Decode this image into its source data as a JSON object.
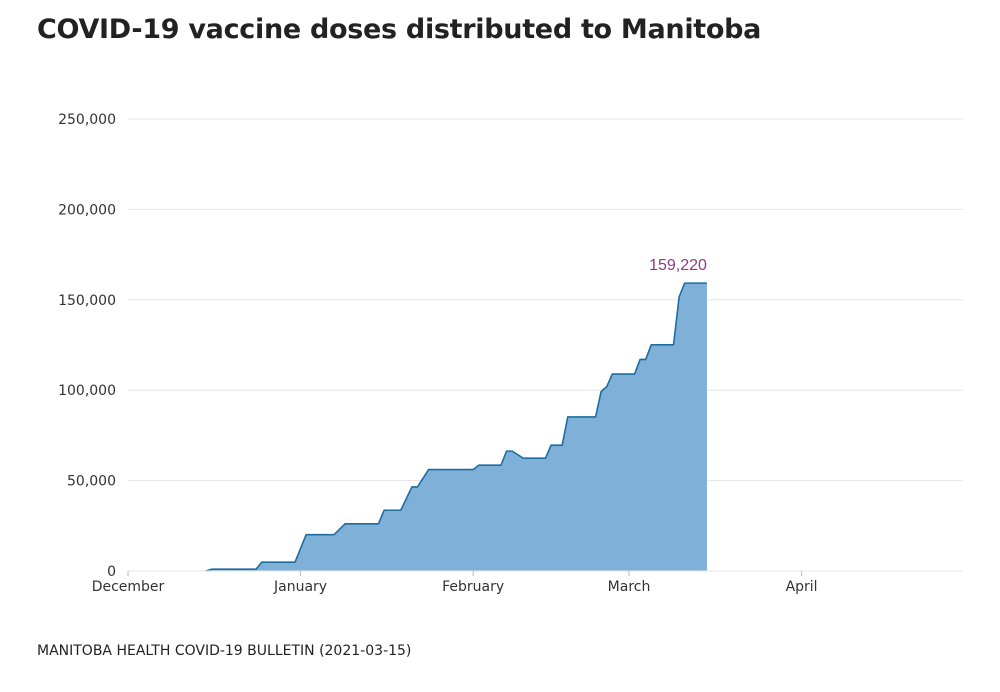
{
  "title": "COVID-19 vaccine doses distributed to Manitoba",
  "source": "MANITOBA HEALTH COVID-19 BULLETIN (2021-03-15)",
  "chart_data": {
    "type": "area",
    "title": "COVID-19 vaccine doses distributed to Manitoba",
    "xlabel": "",
    "ylabel": "",
    "x_domain": [
      "2020-12-01",
      "2021-04-30"
    ],
    "ylim": [
      0,
      250000
    ],
    "grid": true,
    "y_ticks": [
      0,
      50000,
      100000,
      150000,
      200000,
      250000
    ],
    "y_tick_labels": [
      "0",
      "50,000",
      "100,000",
      "150,000",
      "200,000",
      "250,000"
    ],
    "x_ticks": [
      {
        "date": "2020-12-01",
        "label": "December"
      },
      {
        "date": "2021-01-01",
        "label": "January"
      },
      {
        "date": "2021-02-01",
        "label": "February"
      },
      {
        "date": "2021-03-01",
        "label": "March"
      },
      {
        "date": "2021-04-01",
        "label": "April"
      }
    ],
    "series": [
      {
        "name": "Doses distributed",
        "color_fill": "#7fb0d8",
        "color_line": "#1c6ea0",
        "points": [
          [
            "2020-12-15",
            0
          ],
          [
            "2020-12-16",
            975
          ],
          [
            "2020-12-24",
            975
          ],
          [
            "2020-12-25",
            4875
          ],
          [
            "2020-12-31",
            4875
          ],
          [
            "2021-01-02",
            20100
          ],
          [
            "2021-01-07",
            20100
          ],
          [
            "2021-01-09",
            26100
          ],
          [
            "2021-01-15",
            26100
          ],
          [
            "2021-01-16",
            33600
          ],
          [
            "2021-01-19",
            33600
          ],
          [
            "2021-01-21",
            46500
          ],
          [
            "2021-01-22",
            46500
          ],
          [
            "2021-01-24",
            56100
          ],
          [
            "2021-02-01",
            56100
          ],
          [
            "2021-02-02",
            58500
          ],
          [
            "2021-02-06",
            58500
          ],
          [
            "2021-02-07",
            66300
          ],
          [
            "2021-02-08",
            66300
          ],
          [
            "2021-02-10",
            62400
          ],
          [
            "2021-02-14",
            62400
          ],
          [
            "2021-02-15",
            69600
          ],
          [
            "2021-02-17",
            69600
          ],
          [
            "2021-02-18",
            85200
          ],
          [
            "2021-02-23",
            85200
          ],
          [
            "2021-02-24",
            99300
          ],
          [
            "2021-02-25",
            102000
          ],
          [
            "2021-02-26",
            108900
          ],
          [
            "2021-03-02",
            108900
          ],
          [
            "2021-03-03",
            117000
          ],
          [
            "2021-03-04",
            117000
          ],
          [
            "2021-03-05",
            125100
          ],
          [
            "2021-03-09",
            125100
          ],
          [
            "2021-03-10",
            151500
          ],
          [
            "2021-03-11",
            159220
          ],
          [
            "2021-03-15",
            159220
          ]
        ]
      }
    ],
    "annotations": [
      {
        "date": "2021-03-15",
        "value": 159220,
        "text": "159,220"
      }
    ]
  }
}
